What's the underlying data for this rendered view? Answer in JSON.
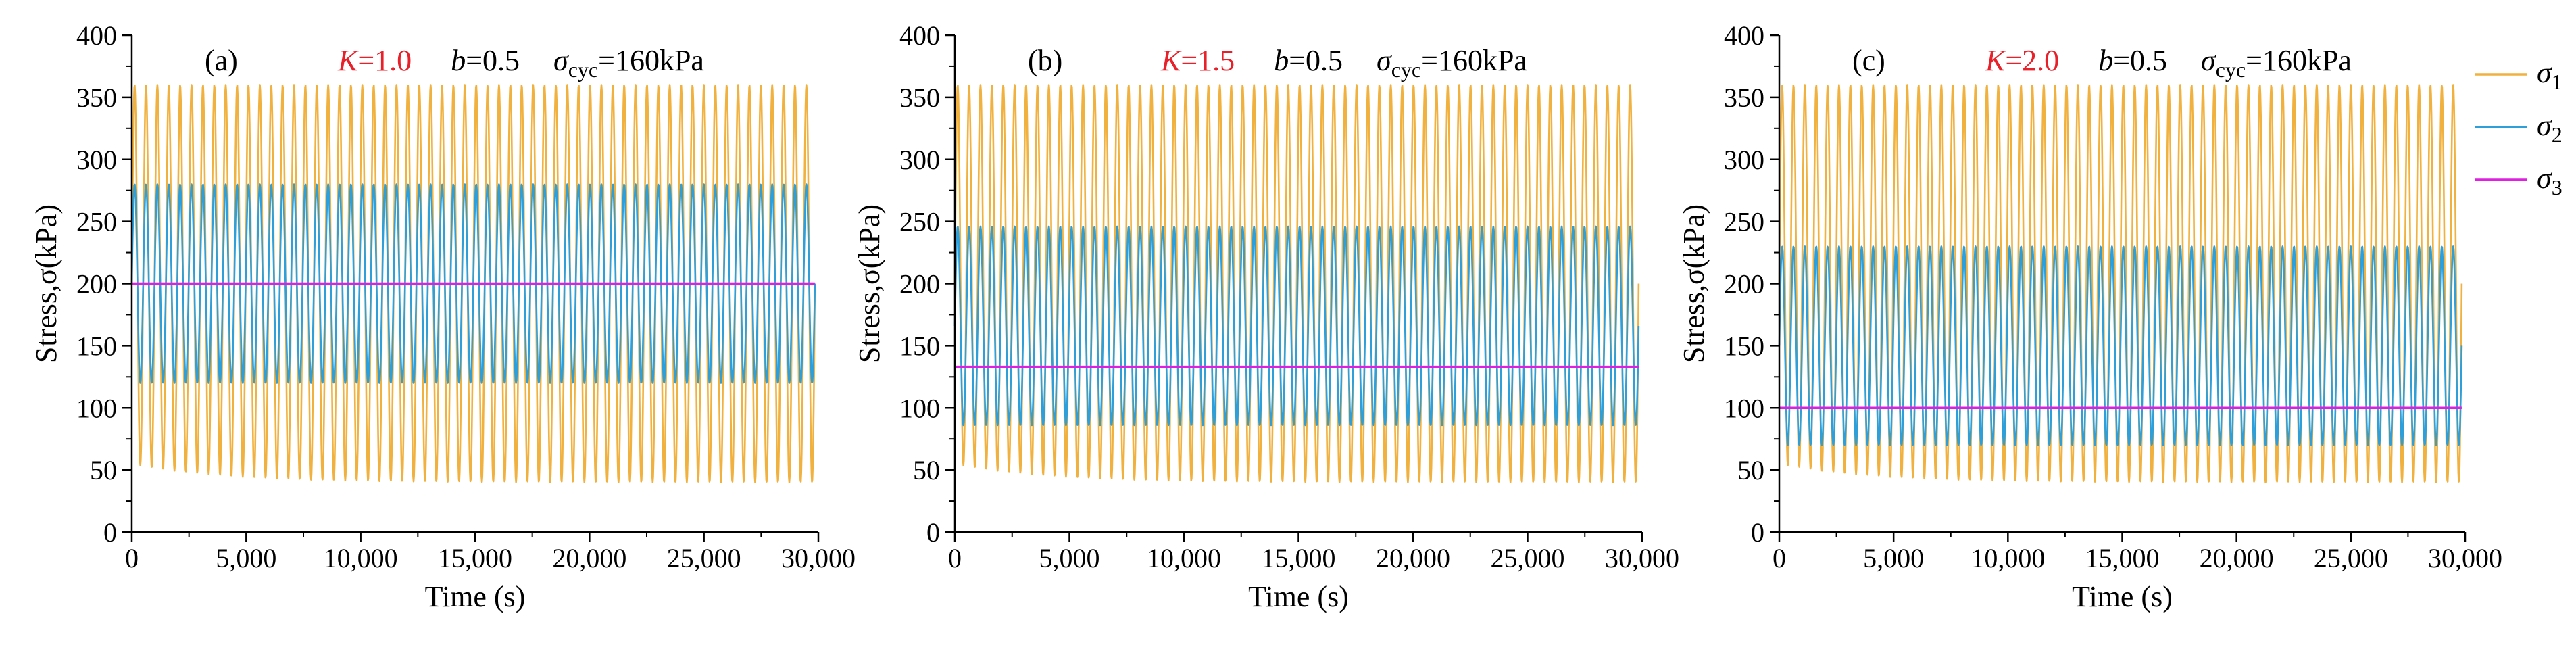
{
  "figure": {
    "legend": {
      "position": "right",
      "entries": [
        {
          "symbol": "σ",
          "sub": "1",
          "color": "#F0B13E"
        },
        {
          "symbol": "σ",
          "sub": "2",
          "color": "#2E9FD8"
        },
        {
          "symbol": "σ",
          "sub": "3",
          "color": "#E020E0"
        }
      ]
    }
  },
  "chart_data": [
    {
      "type": "line",
      "panel_label": "(a)",
      "annotation": {
        "K_symbol": "K",
        "K_value": "=1.0",
        "b_symbol": "b",
        "b_value": "=0.5",
        "sigma": "σ",
        "sigma_sub": "cyc",
        "sigma_value": "=160kPa"
      },
      "xlabel": "Time (s)",
      "ylabel": "Stress,σ(kPa)",
      "xlim": [
        0,
        30000
      ],
      "ylim": [
        0,
        400
      ],
      "xticks": [
        0,
        5000,
        10000,
        15000,
        20000,
        25000,
        30000
      ],
      "xtick_labels": [
        "0",
        "5,000",
        "10,000",
        "15,000",
        "20,000",
        "25,000",
        "30,000"
      ],
      "yticks": [
        0,
        50,
        100,
        150,
        200,
        250,
        300,
        350,
        400
      ],
      "ytick_labels": [
        "0",
        "50",
        "100",
        "150",
        "200",
        "250",
        "300",
        "350",
        "400"
      ],
      "cycles": 60,
      "series": [
        {
          "name": "σ1",
          "type": "cyclic",
          "mean": 200,
          "amplitude": 160,
          "min_start": 55,
          "color": "#F0B13E"
        },
        {
          "name": "σ2",
          "type": "cyclic",
          "mean": 200,
          "amplitude": 80,
          "color": "#2E9FD8"
        },
        {
          "name": "σ3",
          "type": "constant",
          "value": 200,
          "color": "#E020E0"
        }
      ]
    },
    {
      "type": "line",
      "panel_label": "(b)",
      "annotation": {
        "K_symbol": "K",
        "K_value": "=1.5",
        "b_symbol": "b",
        "b_value": "=0.5",
        "sigma": "σ",
        "sigma_sub": "cyc",
        "sigma_value": "=160kPa"
      },
      "xlabel": "Time (s)",
      "ylabel": "Stress,σ(kPa)",
      "xlim": [
        0,
        30000
      ],
      "ylim": [
        0,
        400
      ],
      "xticks": [
        0,
        5000,
        10000,
        15000,
        20000,
        25000,
        30000
      ],
      "xtick_labels": [
        "0",
        "5,000",
        "10,000",
        "15,000",
        "20,000",
        "25,000",
        "30,000"
      ],
      "yticks": [
        0,
        50,
        100,
        150,
        200,
        250,
        300,
        350,
        400
      ],
      "ytick_labels": [
        "0",
        "50",
        "100",
        "150",
        "200",
        "250",
        "300",
        "350",
        "400"
      ],
      "cycles": 60,
      "series": [
        {
          "name": "σ1",
          "type": "cyclic",
          "mean": 200,
          "amplitude": 160,
          "min_start": 55,
          "color": "#F0B13E"
        },
        {
          "name": "σ2",
          "type": "cyclic",
          "mean": 166,
          "amplitude": 80,
          "color": "#2E9FD8"
        },
        {
          "name": "σ3",
          "type": "constant",
          "value": 133,
          "color": "#E020E0"
        }
      ]
    },
    {
      "type": "line",
      "panel_label": "(c)",
      "annotation": {
        "K_symbol": "K",
        "K_value": "=2.0",
        "b_symbol": "b",
        "b_value": "=0.5",
        "sigma": "σ",
        "sigma_sub": "cyc",
        "sigma_value": "=160kPa"
      },
      "xlabel": "Time (s)",
      "ylabel": "Stress,σ(kPa)",
      "xlim": [
        0,
        30000
      ],
      "ylim": [
        0,
        400
      ],
      "xticks": [
        0,
        5000,
        10000,
        15000,
        20000,
        25000,
        30000
      ],
      "xtick_labels": [
        "0",
        "5,000",
        "10,000",
        "15,000",
        "20,000",
        "25,000",
        "30,000"
      ],
      "yticks": [
        0,
        50,
        100,
        150,
        200,
        250,
        300,
        350,
        400
      ],
      "ytick_labels": [
        "0",
        "50",
        "100",
        "150",
        "200",
        "250",
        "300",
        "350",
        "400"
      ],
      "cycles": 60,
      "series": [
        {
          "name": "σ1",
          "type": "cyclic",
          "mean": 200,
          "amplitude": 160,
          "min_start": 55,
          "color": "#F0B13E"
        },
        {
          "name": "σ2",
          "type": "cyclic",
          "mean": 150,
          "amplitude": 80,
          "color": "#2E9FD8"
        },
        {
          "name": "σ3",
          "type": "constant",
          "value": 100,
          "color": "#E020E0"
        }
      ]
    }
  ]
}
